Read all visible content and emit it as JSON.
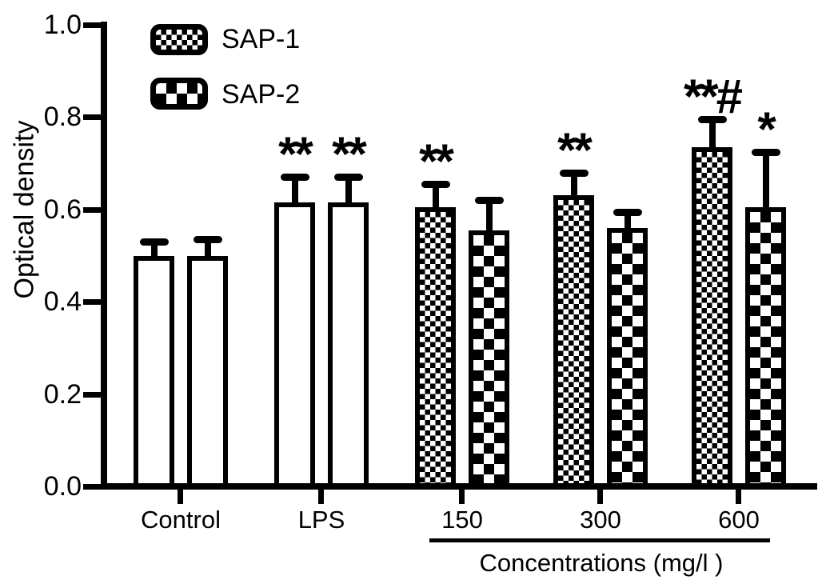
{
  "figure": {
    "background_color": "#ffffff",
    "ink_color": "#000000"
  },
  "chart_data": {
    "type": "bar",
    "title": "",
    "ylabel": "Optical density",
    "xlabel": "Concentrations (mg/l )",
    "ylim": [
      0.0,
      1.0
    ],
    "yticks": [
      1.0,
      0.8,
      0.6,
      0.4,
      0.2,
      0.0
    ],
    "ytick_labels": [
      "1.0",
      "0.8",
      "0.6",
      "0.4",
      "0.2",
      "0.0"
    ],
    "categories": [
      "Control",
      "LPS",
      "150",
      "300",
      "600"
    ],
    "concentration_underline_categories": [
      "150",
      "300",
      "600"
    ],
    "grid": false,
    "legend_position": "top-left",
    "error_bars": "upper-only",
    "series": [
      {
        "name": "SAP-1",
        "pattern": "fine-checker",
        "patterned_by_category": [
          false,
          false,
          true,
          true,
          true
        ],
        "values": [
          0.5,
          0.615,
          0.605,
          0.63,
          0.735
        ],
        "errors": [
          0.03,
          0.055,
          0.05,
          0.05,
          0.06
        ],
        "annotations": [
          "",
          "**",
          "**",
          "**",
          "**#"
        ]
      },
      {
        "name": "SAP-2",
        "pattern": "coarse-checker",
        "patterned_by_category": [
          false,
          false,
          true,
          true,
          true
        ],
        "values": [
          0.5,
          0.615,
          0.555,
          0.56,
          0.605
        ],
        "errors": [
          0.035,
          0.055,
          0.065,
          0.035,
          0.12
        ],
        "annotations": [
          "",
          "**",
          "",
          "",
          "*"
        ]
      }
    ]
  },
  "legend": {
    "items": [
      {
        "label": "SAP-1",
        "swatch": "fine-checker-swatch"
      },
      {
        "label": "SAP-2",
        "swatch": "coarse-checker-swatch"
      }
    ]
  }
}
